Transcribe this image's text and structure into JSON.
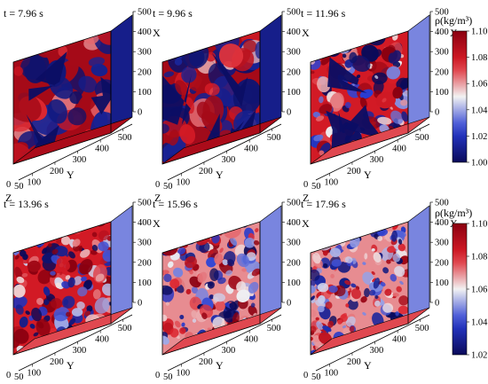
{
  "panels": [
    {
      "time_label": "t = 7.96 s",
      "scale": "upper",
      "mix": 0.05,
      "seed": 11
    },
    {
      "time_label": "t = 9.96 s",
      "scale": "upper",
      "mix": 0.22,
      "seed": 23
    },
    {
      "time_label": "t = 11.96 s",
      "scale": "upper",
      "mix": 0.45,
      "seed": 37
    },
    {
      "time_label": "t = 13.96 s",
      "scale": "lower",
      "mix": 0.55,
      "seed": 41
    },
    {
      "time_label": "t = 15.96 s",
      "scale": "lower",
      "mix": 0.75,
      "seed": 53
    },
    {
      "time_label": "t = 17.96 s",
      "scale": "lower",
      "mix": 0.9,
      "seed": 67
    }
  ],
  "axes": {
    "x_label": "X",
    "y_label": "Y",
    "z_label": "Z",
    "x_ticks": [
      "500",
      "400",
      "300",
      "200",
      "100",
      "0"
    ],
    "y_ticks": [
      "100",
      "200",
      "300",
      "400",
      "500"
    ],
    "z_ticks": [
      "0",
      "50"
    ]
  },
  "colorbars": [
    {
      "id": "upper",
      "label": "ρ(kg/m³)",
      "ticks": [
        "1.10",
        "1.08",
        "1.06",
        "1.04",
        "1.02",
        "1.00"
      ],
      "min": 1.0,
      "max": 1.1
    },
    {
      "id": "lower",
      "label": "ρ(kg/m³)",
      "ticks": [
        "1.10",
        "1.08",
        "1.06",
        "1.04",
        "1.02"
      ],
      "min": 1.02,
      "max": 1.1
    }
  ],
  "colors": {
    "high": "#8b0010",
    "mid": "#f2f2f2",
    "low": "#0a0a5a",
    "frame": "#000000"
  }
}
